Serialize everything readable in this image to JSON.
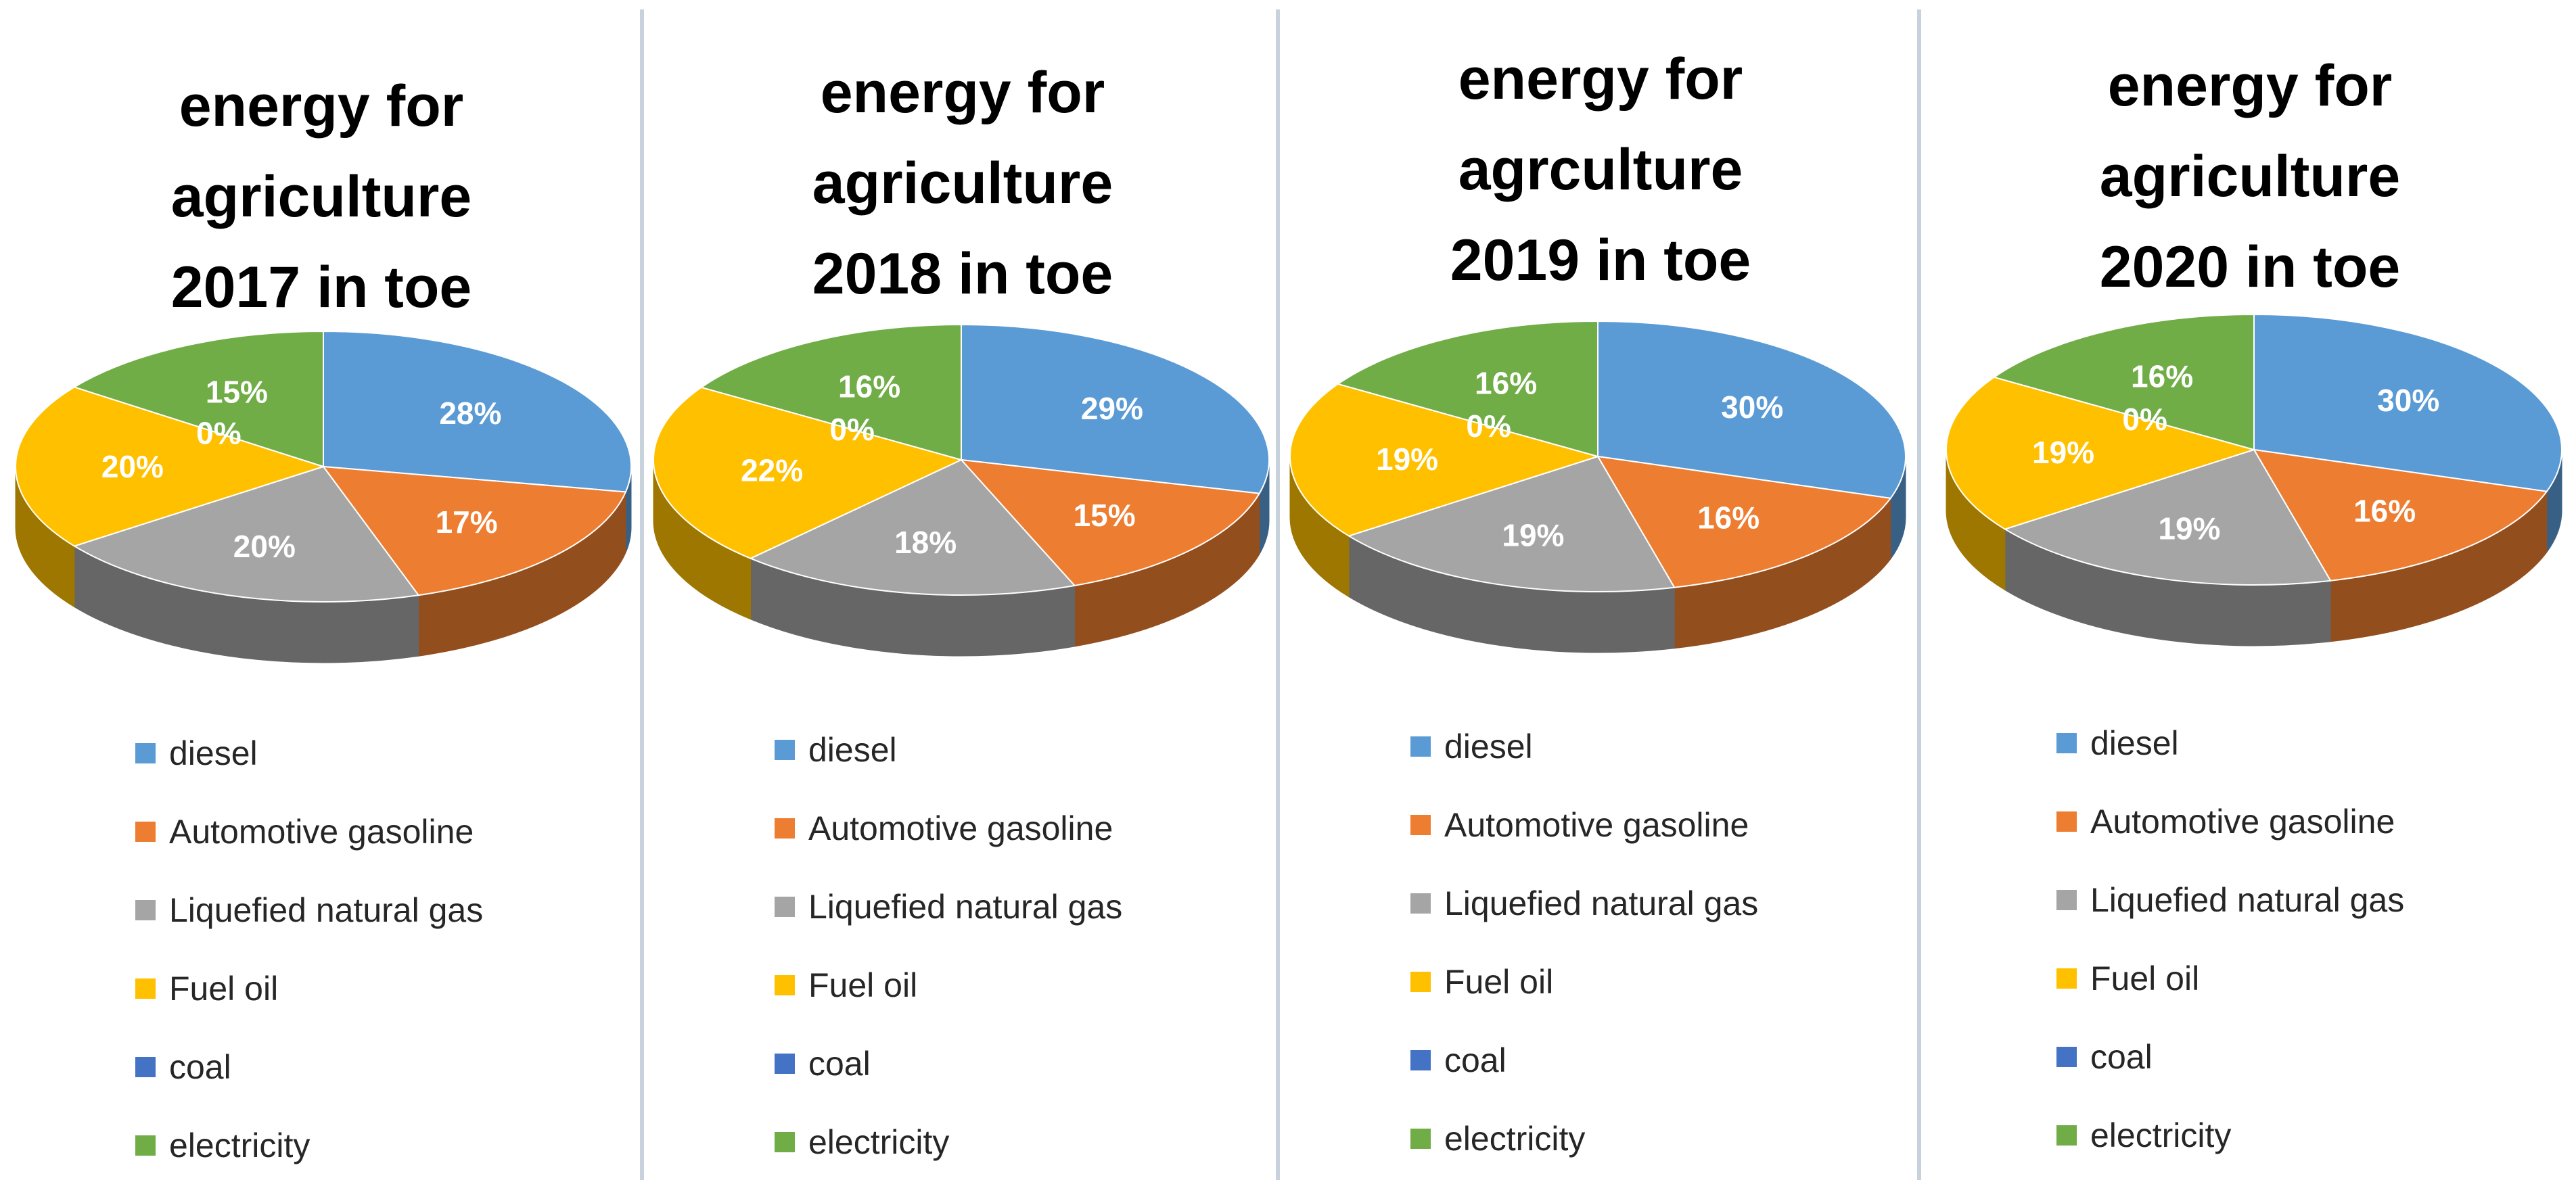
{
  "legend_labels": [
    "diesel",
    "Automotive gasoline",
    "Liquefied natural gas",
    "Fuel oil",
    "coal",
    "electricity"
  ],
  "colors": {
    "diesel": "#5b9bd5",
    "Automotive gasoline": "#ed7d31",
    "Liquefied natural gas": "#a5a5a5",
    "Fuel oil": "#ffc000",
    "coal": "#4472c4",
    "electricity": "#70ad47"
  },
  "chart_data": [
    {
      "type": "pie",
      "title_lines": [
        "energy for",
        "agriculture",
        "2017 in toe"
      ],
      "categories": [
        "diesel",
        "Automotive gasoline",
        "Liquefied natural gas",
        "Fuel oil",
        "coal",
        "electricity"
      ],
      "values": [
        28,
        17,
        20,
        20,
        0,
        15
      ],
      "labels": [
        "28%",
        "17%",
        "20%",
        "20%",
        "0%",
        "15%"
      ],
      "legend_position": "bottom"
    },
    {
      "type": "pie",
      "title_lines": [
        "energy for",
        "agriculture",
        "2018 in toe"
      ],
      "categories": [
        "diesel",
        "Automotive gasoline",
        "Liquefied natural gas",
        "Fuel oil",
        "coal",
        "electricity"
      ],
      "values": [
        29,
        15,
        18,
        22,
        0,
        16
      ],
      "labels": [
        "29%",
        "15%",
        "18%",
        "22%",
        "0%",
        "16%"
      ],
      "legend_position": "bottom"
    },
    {
      "type": "pie",
      "title_lines": [
        "energy for",
        "agrculture",
        "2019 in toe"
      ],
      "categories": [
        "diesel",
        "Automotive gasoline",
        "Liquefied natural gas",
        "Fuel oil",
        "coal",
        "electricity"
      ],
      "values": [
        30,
        16,
        19,
        19,
        0,
        16
      ],
      "labels": [
        "30%",
        "16%",
        "19%",
        "19%",
        "0%",
        "16%"
      ],
      "legend_position": "bottom"
    },
    {
      "type": "pie",
      "title_lines": [
        "energy for",
        "agriculture",
        "2020 in toe"
      ],
      "categories": [
        "diesel",
        "Automotive gasoline",
        "Liquefied natural gas",
        "Fuel oil",
        "coal",
        "electricity"
      ],
      "values": [
        30,
        16,
        19,
        19,
        0,
        16
      ],
      "labels": [
        "30%",
        "16%",
        "19%",
        "19%",
        "0%",
        "16%"
      ],
      "legend_position": "bottom"
    }
  ]
}
